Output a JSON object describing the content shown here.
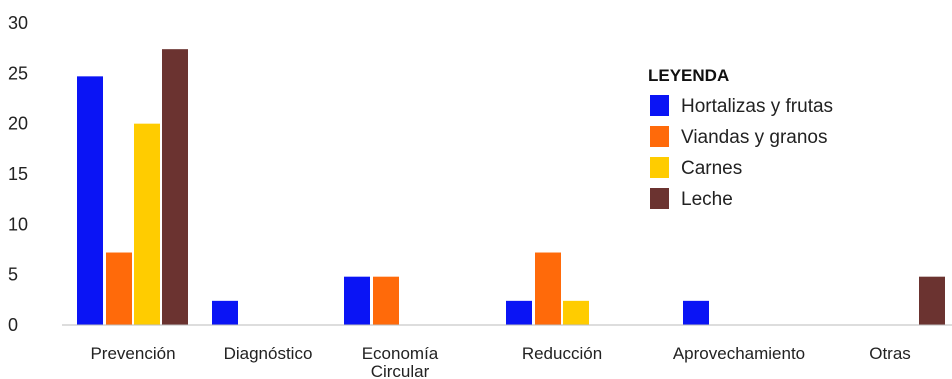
{
  "chart_data": {
    "type": "bar",
    "categories": [
      "Prevención",
      "Diagnóstico",
      "Economía Circular",
      "Reducción",
      "Aprovechamiento",
      "Otras"
    ],
    "category_lines": [
      [
        "Prevención"
      ],
      [
        "Diagnóstico"
      ],
      [
        "Economía",
        "Circular"
      ],
      [
        "Reducción"
      ],
      [
        "Aprovechamiento"
      ],
      [
        "Otras"
      ]
    ],
    "series": [
      {
        "name": "Hortalizas y frutas",
        "color": "#0a14f5",
        "values": [
          24.7,
          2.4,
          4.8,
          2.4,
          2.4,
          0
        ]
      },
      {
        "name": "Viandas y granos",
        "color": "#ff6a0a",
        "values": [
          7.2,
          0,
          4.8,
          7.2,
          0,
          0
        ]
      },
      {
        "name": "Carnes",
        "color": "#ffcc00",
        "values": [
          20.0,
          0,
          0,
          2.4,
          0,
          0
        ]
      },
      {
        "name": "Leche",
        "color": "#6b3330",
        "values": [
          27.4,
          0,
          0,
          0,
          0,
          4.8
        ]
      }
    ],
    "ylim": [
      0,
      30
    ],
    "yticks": [
      0,
      5,
      10,
      15,
      20,
      25,
      30
    ],
    "title": "",
    "xlabel": "",
    "ylabel": "",
    "grid": false,
    "legend": {
      "title": "LEYENDA",
      "position": "top-right"
    }
  }
}
